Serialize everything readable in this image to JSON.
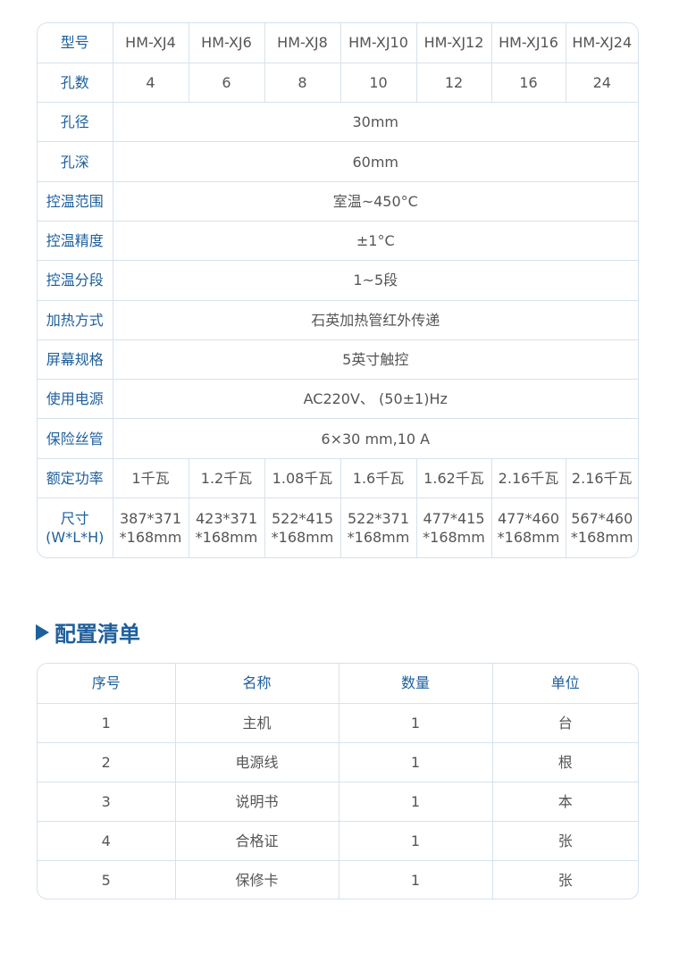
{
  "spec": {
    "models_label": "型号",
    "models": [
      "HM-XJ4",
      "HM-XJ6",
      "HM-XJ8",
      "HM-XJ10",
      "HM-XJ12",
      "HM-XJ16",
      "HM-XJ24"
    ],
    "holes_label": "孔数",
    "holes": [
      "4",
      "6",
      "8",
      "10",
      "12",
      "16",
      "24"
    ],
    "shared_rows": [
      {
        "label": "孔径",
        "value": "30mm"
      },
      {
        "label": "孔深",
        "value": "60mm"
      },
      {
        "label": "控温范围",
        "value": "室温~450°C"
      },
      {
        "label": "控温精度",
        "value": "±1°C"
      },
      {
        "label": "控温分段",
        "value": "1~5段"
      },
      {
        "label": "加热方式",
        "value": "石英加热管红外传递"
      },
      {
        "label": "屏幕规格",
        "value": "5英寸触控"
      },
      {
        "label": "使用电源",
        "value": "AC220V、 (50±1)Hz"
      },
      {
        "label": "保险丝管",
        "value": "6×30 mm,10 A"
      }
    ],
    "power_label": "额定功率",
    "power": [
      "1千瓦",
      "1.2千瓦",
      "1.08千瓦",
      "1.6千瓦",
      "1.62千瓦",
      "2.16千瓦",
      "2.16千瓦"
    ],
    "size_label_1": "尺寸",
    "size_label_2": "(W*L*H)",
    "size_top": [
      "387*371",
      "423*371",
      "522*415",
      "522*371",
      "477*415",
      "477*460",
      "567*460"
    ],
    "size_bottom": [
      "*168mm",
      "*168mm",
      "*168mm",
      "*168mm",
      "*168mm",
      "*168mm",
      "*168mm"
    ]
  },
  "config": {
    "title": "配置清单",
    "headers": [
      "序号",
      "名称",
      "数量",
      "单位"
    ],
    "rows": [
      [
        "1",
        "主机",
        "1",
        "台"
      ],
      [
        "2",
        "电源线",
        "1",
        "根"
      ],
      [
        "3",
        "说明书",
        "1",
        "本"
      ],
      [
        "4",
        "合格证",
        "1",
        "张"
      ],
      [
        "5",
        "保修卡",
        "1",
        "张"
      ]
    ]
  },
  "colors": {
    "accent": "#1e5f9c",
    "border": "#d5e2ec",
    "text": "#555555"
  }
}
